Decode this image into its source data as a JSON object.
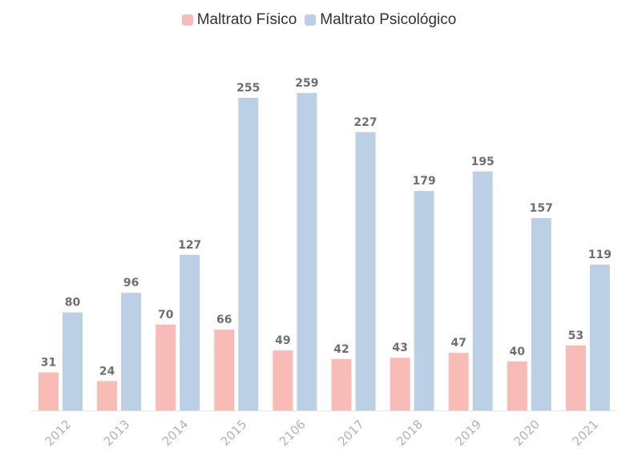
{
  "colors": {
    "fisico": "#f9bbb5",
    "psicologico": "#bbd0e5",
    "value_text": "#6f6f6f",
    "tick_text": "#b3b3b3",
    "axis": "#e6e6e6"
  },
  "chart_data": {
    "type": "bar",
    "categories": [
      "2012",
      "2013",
      "2014",
      "2015",
      "2106",
      "2017",
      "2018",
      "2019",
      "2020",
      "2021"
    ],
    "series": [
      {
        "name": "Maltrato Físico",
        "values": [
          31,
          24,
          70,
          66,
          49,
          42,
          43,
          47,
          40,
          53
        ]
      },
      {
        "name": "Maltrato Psicológico",
        "values": [
          80,
          96,
          127,
          255,
          259,
          227,
          179,
          195,
          157,
          119
        ]
      }
    ],
    "ylim": [
      0,
      260
    ],
    "grid": false,
    "legend": "top-center",
    "data_labels": true
  }
}
